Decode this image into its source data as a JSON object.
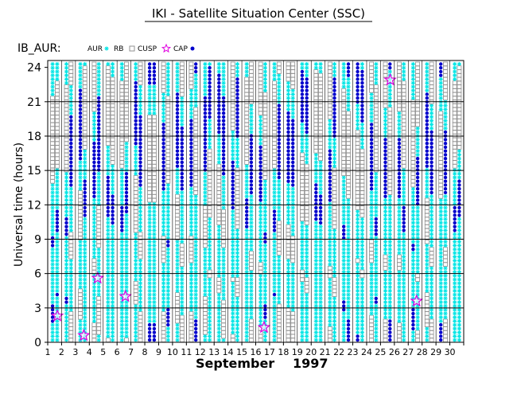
{
  "chart_data": {
    "type": "scatter",
    "title": "IKI - Satellite Situation Center (SSC)",
    "subtitle": "IB_AUR:",
    "xlabel_month": "September",
    "xlabel_year": "1997",
    "ylabel": "Universal time (hours)",
    "x_ticks": [
      "1",
      "2",
      "3",
      "4",
      "5",
      "6",
      "7",
      "8",
      "9",
      "10",
      "11",
      "12",
      "13",
      "14",
      "15",
      "16",
      "17",
      "18",
      "19",
      "20",
      "21",
      "22",
      "23",
      "24",
      "25",
      "26",
      "27",
      "28",
      "29",
      "30"
    ],
    "y_ticks": [
      "0",
      "3",
      "6",
      "9",
      "12",
      "15",
      "18",
      "21",
      "24"
    ],
    "xlim": [
      1,
      31
    ],
    "ylim": [
      0,
      24.6
    ],
    "grid": true,
    "legend": [
      {
        "label": "AUR",
        "marker": "cyan-asterisk"
      },
      {
        "label": "RB",
        "marker": "gray-square"
      },
      {
        "label": "CUSP",
        "marker": "magenta-star"
      },
      {
        "label": "CAP",
        "marker": "blue-dot"
      }
    ],
    "colors": {
      "AUR": "#00e5e5",
      "RB": "#909090",
      "CUSP": "#e000e0",
      "CAP": "#0000cc",
      "grid": "#000000"
    },
    "cusp_points": [
      {
        "day": 1.7,
        "ut": 2.3
      },
      {
        "day": 3.6,
        "ut": 0.6
      },
      {
        "day": 4.6,
        "ut": 5.6
      },
      {
        "day": 6.6,
        "ut": 4.0
      },
      {
        "day": 16.6,
        "ut": 1.3
      },
      {
        "day": 25.7,
        "ut": 22.9
      },
      {
        "day": 27.6,
        "ut": 3.6
      }
    ]
  }
}
